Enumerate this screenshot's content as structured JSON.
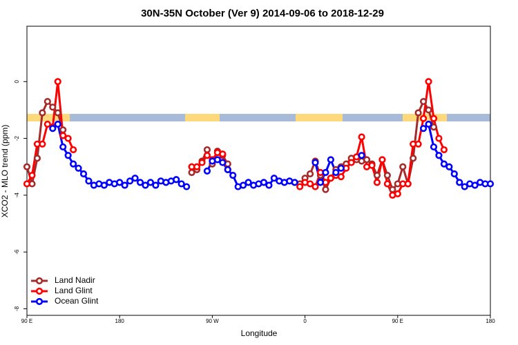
{
  "chart_data": {
    "type": "line",
    "title": "30N-35N October (Ver 9)   2014-09-06 to 2018-12-29",
    "x_label": "Longitude",
    "y_label": "XCO2 - MLO trend (ppm)",
    "x": [
      90,
      95,
      100,
      105,
      110,
      115,
      120,
      125,
      130,
      135,
      140,
      145,
      150,
      155,
      160,
      165,
      170,
      175,
      180,
      185,
      190,
      195,
      200,
      205,
      210,
      215,
      220,
      225,
      230,
      235,
      240,
      245,
      250,
      255,
      260,
      265,
      270,
      275,
      280,
      285,
      290,
      295,
      300,
      305,
      310,
      315,
      320,
      325,
      330,
      335,
      340,
      345,
      350,
      355,
      360,
      365,
      370,
      375,
      380,
      385,
      390,
      395,
      400,
      405,
      410,
      415,
      420,
      425,
      430,
      435,
      440,
      445,
      450,
      455,
      460,
      465,
      470,
      475,
      480,
      485,
      490,
      495,
      500,
      505,
      510,
      515,
      520,
      525,
      530,
      535,
      540
    ],
    "series": [
      {
        "name": "Land Nadir",
        "color": "#a52a2a",
        "values": [
          -3.0,
          -3.6,
          -2.7,
          -1.1,
          -0.7,
          -0.9,
          -1.1,
          -1.7,
          null,
          null,
          null,
          null,
          null,
          null,
          null,
          null,
          null,
          null,
          null,
          null,
          null,
          null,
          null,
          null,
          null,
          null,
          null,
          null,
          null,
          null,
          null,
          null,
          -3.2,
          -3.1,
          -2.8,
          -2.4,
          -2.9,
          -2.45,
          -2.6,
          -2.9,
          null,
          null,
          null,
          null,
          null,
          null,
          null,
          null,
          null,
          null,
          null,
          null,
          null,
          -3.6,
          -3.4,
          -3.25,
          -2.8,
          -3.3,
          -3.8,
          -3.4,
          -3.1,
          -3.0,
          -2.9,
          -2.7,
          -2.75,
          -2.8,
          -2.75,
          -2.9,
          -3.3,
          -2.75,
          -3.3,
          -3.8,
          -3.6,
          -3.0,
          -3.6,
          -2.7,
          -1.1,
          -0.7,
          -1.0,
          -1.6,
          null,
          null,
          null,
          null,
          null,
          null,
          null,
          null,
          null,
          null,
          null
        ]
      },
      {
        "name": "Land Glint",
        "color": "#ff0000",
        "values": [
          -3.6,
          -3.3,
          -2.2,
          -2.2,
          -1.5,
          -1.6,
          0,
          -1.9,
          -2.0,
          -2.4,
          null,
          null,
          null,
          null,
          null,
          null,
          null,
          null,
          null,
          null,
          null,
          null,
          null,
          null,
          null,
          null,
          null,
          null,
          null,
          null,
          null,
          null,
          -3.0,
          -3.0,
          -2.85,
          -2.6,
          -2.75,
          -2.5,
          -2.55,
          -3.1,
          null,
          null,
          null,
          null,
          null,
          null,
          null,
          null,
          null,
          null,
          null,
          null,
          null,
          -3.7,
          -3.55,
          -3.6,
          -3.7,
          -3.2,
          -3.55,
          -3.4,
          -3.3,
          -3.35,
          -3.05,
          -2.85,
          -2.65,
          -1.95,
          -3.0,
          -2.95,
          -3.55,
          -2.75,
          -3.6,
          -4.0,
          -3.95,
          -3.6,
          -3.6,
          -2.2,
          -2.2,
          -1.3,
          0,
          -1.3,
          -2.0,
          -2.4,
          null,
          null,
          null,
          null,
          null,
          null,
          null,
          null,
          null
        ]
      },
      {
        "name": "Ocean Glint",
        "color": "#0000ff",
        "values": [
          null,
          null,
          null,
          null,
          null,
          -1.65,
          -1.5,
          -2.3,
          -2.6,
          -2.9,
          -3.05,
          -3.25,
          -3.5,
          -3.65,
          -3.6,
          -3.65,
          -3.55,
          -3.6,
          -3.55,
          -3.65,
          -3.5,
          -3.4,
          -3.55,
          -3.65,
          -3.55,
          -3.65,
          -3.5,
          -3.55,
          -3.5,
          -3.45,
          -3.6,
          -3.7,
          null,
          null,
          null,
          -3.15,
          -2.8,
          -2.75,
          -2.85,
          -3.1,
          -3.3,
          -3.7,
          -3.65,
          -3.55,
          -3.65,
          -3.6,
          -3.55,
          -3.65,
          -3.4,
          -3.5,
          -3.55,
          -3.5,
          -3.55,
          null,
          null,
          null,
          -2.85,
          -3.55,
          -3.2,
          -2.75,
          -3.2,
          -3.05,
          null,
          null,
          null,
          -2.6,
          null,
          null,
          null,
          null,
          null,
          null,
          null,
          null,
          null,
          null,
          null,
          -1.65,
          -1.5,
          -2.3,
          -2.6,
          -2.9,
          -3.0,
          -3.25,
          -3.55,
          -3.7,
          -3.6,
          -3.65,
          -3.55,
          -3.6,
          -3.6
        ]
      }
    ],
    "xlim": [
      90,
      540
    ],
    "xticks": [
      {
        "value": 90,
        "label": "90 E"
      },
      {
        "value": 180,
        "label": "180"
      },
      {
        "value": 270,
        "label": "90 W"
      },
      {
        "value": 360,
        "label": "0"
      },
      {
        "value": 450,
        "label": "90 E"
      },
      {
        "value": 540,
        "label": "180"
      }
    ],
    "ylim": [
      -8.23,
      1.95
    ],
    "yticks": [
      0,
      -2,
      -4,
      -6,
      -8
    ],
    "legend": "bottomleft",
    "grid": false
  }
}
